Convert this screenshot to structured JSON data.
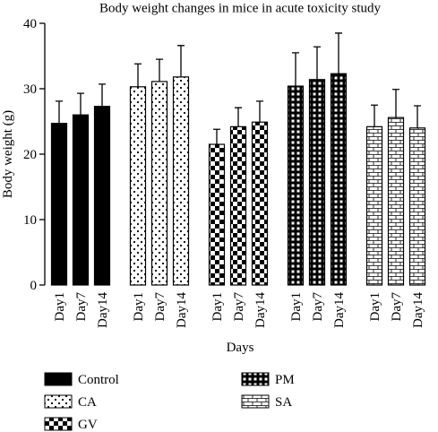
{
  "chart_data": {
    "type": "bar",
    "title": "Body weight changes in mice in acute toxicity study",
    "x_label": "Days",
    "y_label": "Body weight (g)",
    "categories": [
      "Day1",
      "Day7",
      "Day14"
    ],
    "series": [
      {
        "name": "Control",
        "color": "#000000",
        "pattern": "solid",
        "values": [
          24.7,
          26.0,
          27.3
        ],
        "errors": [
          3.4,
          3.3,
          3.4
        ]
      },
      {
        "name": "CA",
        "color": "#000000",
        "pattern": "dots",
        "values": [
          30.3,
          31.1,
          31.8
        ],
        "errors": [
          3.5,
          3.4,
          4.8
        ]
      },
      {
        "name": "GV",
        "color": "#000000",
        "pattern": "checker",
        "values": [
          21.5,
          24.2,
          24.9
        ],
        "errors": [
          2.3,
          2.9,
          3.2
        ]
      },
      {
        "name": "PM",
        "color": "#000000",
        "pattern": "grid",
        "values": [
          30.4,
          31.4,
          32.3
        ],
        "errors": [
          5.1,
          5.0,
          6.2
        ]
      },
      {
        "name": "SA",
        "color": "#000000",
        "pattern": "brick",
        "values": [
          24.2,
          25.6,
          24.0
        ],
        "errors": [
          3.3,
          4.3,
          3.4
        ]
      }
    ],
    "ylim": [
      0,
      40
    ],
    "yticks": [
      0,
      10,
      20,
      30,
      40
    ]
  }
}
